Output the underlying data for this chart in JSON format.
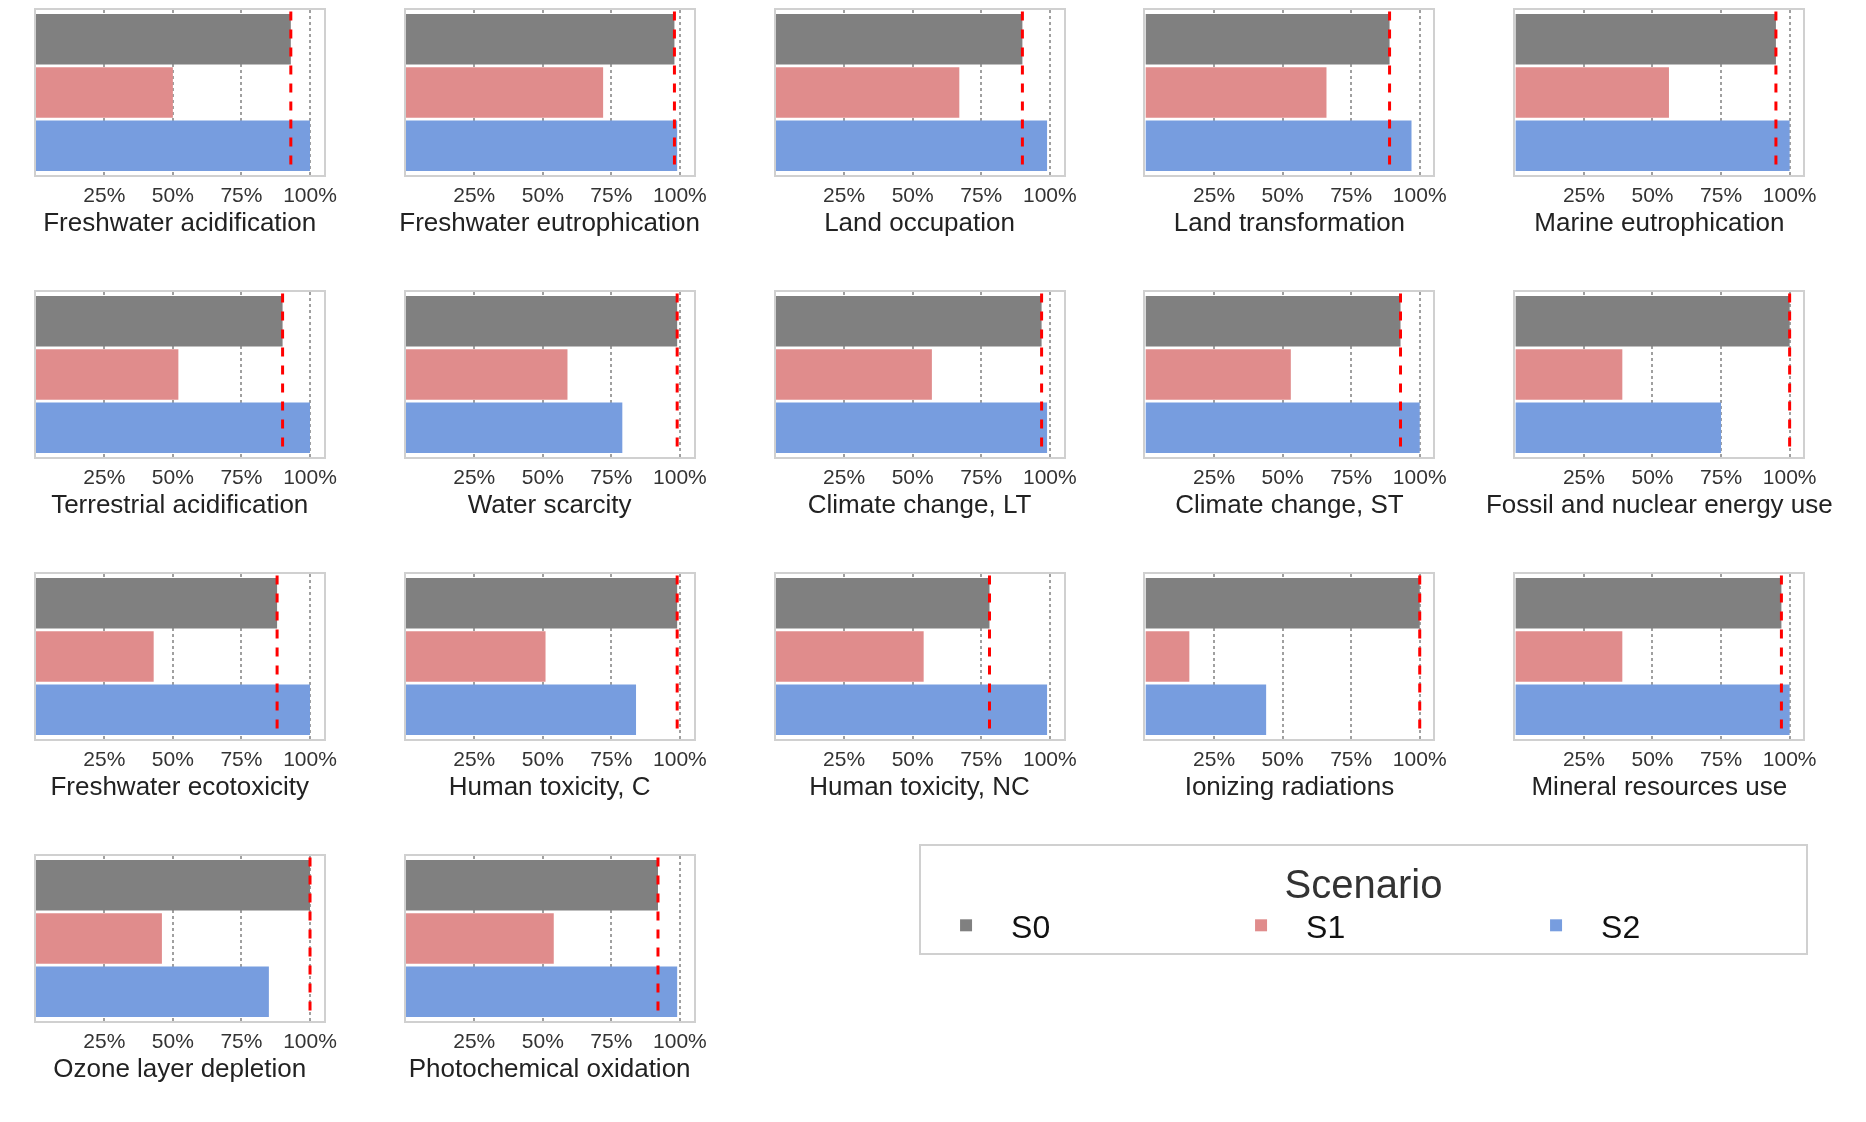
{
  "chart_data": [
    {
      "type": "bar",
      "orientation": "horizontal",
      "xlabel": "Freshwater acidification",
      "categories": [
        null,
        null,
        null
      ],
      "series": [
        {
          "color": "#808080",
          "values": [
            93,
            null,
            null
          ]
        },
        {
          "color": "#e08c8c",
          "values": [
            null,
            50,
            null
          ]
        },
        {
          "color": "#779ddf",
          "values": [
            null,
            null,
            100
          ]
        }
      ],
      "ref_lines": [
        {
          "axis": "x",
          "value": 93,
          "color": "#ff0000",
          "line_style": "dashed"
        }
      ],
      "xlim": [
        0,
        105
      ],
      "xticks": [
        {
          "value": 25,
          "label": "25%"
        },
        {
          "value": 50,
          "label": "50%"
        },
        {
          "value": 75,
          "label": "75%"
        },
        {
          "value": 100,
          "label": "100%"
        }
      ],
      "grid": "x",
      "tick_labels": "x",
      "legend": false
    },
    {
      "type": "bar",
      "orientation": "horizontal",
      "xlabel": "Freshwater eutrophication",
      "categories": [
        null,
        null,
        null
      ],
      "series": [
        {
          "color": "#808080",
          "values": [
            98,
            null,
            null
          ]
        },
        {
          "color": "#e08c8c",
          "values": [
            null,
            72,
            null
          ]
        },
        {
          "color": "#779ddf",
          "values": [
            null,
            null,
            99
          ]
        }
      ],
      "ref_lines": [
        {
          "axis": "x",
          "value": 98,
          "color": "#ff0000",
          "line_style": "dashed"
        }
      ],
      "xlim": [
        0,
        105
      ],
      "xticks": [
        {
          "value": 25,
          "label": "25%"
        },
        {
          "value": 50,
          "label": "50%"
        },
        {
          "value": 75,
          "label": "75%"
        },
        {
          "value": 100,
          "label": "100%"
        }
      ],
      "grid": "x",
      "tick_labels": "x",
      "legend": false
    },
    {
      "type": "bar",
      "orientation": "horizontal",
      "xlabel": "Land occupation",
      "categories": [
        null,
        null,
        null
      ],
      "series": [
        {
          "color": "#808080",
          "values": [
            90,
            null,
            null
          ]
        },
        {
          "color": "#e08c8c",
          "values": [
            null,
            67,
            null
          ]
        },
        {
          "color": "#779ddf",
          "values": [
            null,
            null,
            99
          ]
        }
      ],
      "ref_lines": [
        {
          "axis": "x",
          "value": 90,
          "color": "#ff0000",
          "line_style": "dashed"
        }
      ],
      "xlim": [
        0,
        105
      ],
      "xticks": [
        {
          "value": 25,
          "label": "25%"
        },
        {
          "value": 50,
          "label": "50%"
        },
        {
          "value": 75,
          "label": "75%"
        },
        {
          "value": 100,
          "label": "100%"
        }
      ],
      "grid": "x",
      "tick_labels": "x",
      "legend": false
    },
    {
      "type": "bar",
      "orientation": "horizontal",
      "xlabel": "Land transformation",
      "categories": [
        null,
        null,
        null
      ],
      "series": [
        {
          "color": "#808080",
          "values": [
            89,
            null,
            null
          ]
        },
        {
          "color": "#e08c8c",
          "values": [
            null,
            66,
            null
          ]
        },
        {
          "color": "#779ddf",
          "values": [
            null,
            null,
            97
          ]
        }
      ],
      "ref_lines": [
        {
          "axis": "x",
          "value": 89,
          "color": "#ff0000",
          "line_style": "dashed"
        }
      ],
      "xlim": [
        0,
        105
      ],
      "xticks": [
        {
          "value": 25,
          "label": "25%"
        },
        {
          "value": 50,
          "label": "50%"
        },
        {
          "value": 75,
          "label": "75%"
        },
        {
          "value": 100,
          "label": "100%"
        }
      ],
      "grid": "x",
      "tick_labels": "x",
      "legend": false
    },
    {
      "type": "bar",
      "orientation": "horizontal",
      "xlabel": "Marine eutrophication",
      "categories": [
        null,
        null,
        null
      ],
      "series": [
        {
          "color": "#808080",
          "values": [
            95,
            null,
            null
          ]
        },
        {
          "color": "#e08c8c",
          "values": [
            null,
            56,
            null
          ]
        },
        {
          "color": "#779ddf",
          "values": [
            null,
            null,
            100
          ]
        }
      ],
      "ref_lines": [
        {
          "axis": "x",
          "value": 95,
          "color": "#ff0000",
          "line_style": "dashed"
        }
      ],
      "xlim": [
        0,
        105
      ],
      "xticks": [
        {
          "value": 25,
          "label": "25%"
        },
        {
          "value": 50,
          "label": "50%"
        },
        {
          "value": 75,
          "label": "75%"
        },
        {
          "value": 100,
          "label": "100%"
        }
      ],
      "grid": "x",
      "tick_labels": "x",
      "legend": false
    },
    {
      "type": "bar",
      "orientation": "horizontal",
      "xlabel": "Terrestrial acidification",
      "categories": [
        null,
        null,
        null
      ],
      "series": [
        {
          "color": "#808080",
          "values": [
            90,
            null,
            null
          ]
        },
        {
          "color": "#e08c8c",
          "values": [
            null,
            52,
            null
          ]
        },
        {
          "color": "#779ddf",
          "values": [
            null,
            null,
            100
          ]
        }
      ],
      "ref_lines": [
        {
          "axis": "x",
          "value": 90,
          "color": "#ff0000",
          "line_style": "dashed"
        }
      ],
      "xlim": [
        0,
        105
      ],
      "xticks": [
        {
          "value": 25,
          "label": "25%"
        },
        {
          "value": 50,
          "label": "50%"
        },
        {
          "value": 75,
          "label": "75%"
        },
        {
          "value": 100,
          "label": "100%"
        }
      ],
      "grid": "x",
      "tick_labels": "x",
      "legend": false
    },
    {
      "type": "bar",
      "orientation": "horizontal",
      "xlabel": "Water scarcity",
      "categories": [
        null,
        null,
        null
      ],
      "series": [
        {
          "color": "#808080",
          "values": [
            99,
            null,
            null
          ]
        },
        {
          "color": "#e08c8c",
          "values": [
            null,
            59,
            null
          ]
        },
        {
          "color": "#779ddf",
          "values": [
            null,
            null,
            79
          ]
        }
      ],
      "ref_lines": [
        {
          "axis": "x",
          "value": 99,
          "color": "#ff0000",
          "line_style": "dashed"
        }
      ],
      "xlim": [
        0,
        105
      ],
      "xticks": [
        {
          "value": 25,
          "label": "25%"
        },
        {
          "value": 50,
          "label": "50%"
        },
        {
          "value": 75,
          "label": "75%"
        },
        {
          "value": 100,
          "label": "100%"
        }
      ],
      "grid": "x",
      "tick_labels": "x",
      "legend": false
    },
    {
      "type": "bar",
      "orientation": "horizontal",
      "xlabel": "Climate change, LT",
      "categories": [
        null,
        null,
        null
      ],
      "series": [
        {
          "color": "#808080",
          "values": [
            97,
            null,
            null
          ]
        },
        {
          "color": "#e08c8c",
          "values": [
            null,
            57,
            null
          ]
        },
        {
          "color": "#779ddf",
          "values": [
            null,
            null,
            99
          ]
        }
      ],
      "ref_lines": [
        {
          "axis": "x",
          "value": 97,
          "color": "#ff0000",
          "line_style": "dashed"
        }
      ],
      "xlim": [
        0,
        105
      ],
      "xticks": [
        {
          "value": 25,
          "label": "25%"
        },
        {
          "value": 50,
          "label": "50%"
        },
        {
          "value": 75,
          "label": "75%"
        },
        {
          "value": 100,
          "label": "100%"
        }
      ],
      "grid": "x",
      "tick_labels": "x",
      "legend": false
    },
    {
      "type": "bar",
      "orientation": "horizontal",
      "xlabel": "Climate change, ST",
      "categories": [
        null,
        null,
        null
      ],
      "series": [
        {
          "color": "#808080",
          "values": [
            93,
            null,
            null
          ]
        },
        {
          "color": "#e08c8c",
          "values": [
            null,
            53,
            null
          ]
        },
        {
          "color": "#779ddf",
          "values": [
            null,
            null,
            100
          ]
        }
      ],
      "ref_lines": [
        {
          "axis": "x",
          "value": 93,
          "color": "#ff0000",
          "line_style": "dashed"
        }
      ],
      "xlim": [
        0,
        105
      ],
      "xticks": [
        {
          "value": 25,
          "label": "25%"
        },
        {
          "value": 50,
          "label": "50%"
        },
        {
          "value": 75,
          "label": "75%"
        },
        {
          "value": 100,
          "label": "100%"
        }
      ],
      "grid": "x",
      "tick_labels": "x",
      "legend": false
    },
    {
      "type": "bar",
      "orientation": "horizontal",
      "xlabel": "Fossil and nuclear energy use",
      "categories": [
        null,
        null,
        null
      ],
      "series": [
        {
          "color": "#808080",
          "values": [
            100,
            null,
            null
          ]
        },
        {
          "color": "#e08c8c",
          "values": [
            null,
            39,
            null
          ]
        },
        {
          "color": "#779ddf",
          "values": [
            null,
            null,
            75
          ]
        }
      ],
      "ref_lines": [
        {
          "axis": "x",
          "value": 100,
          "color": "#ff0000",
          "line_style": "dashed"
        }
      ],
      "xlim": [
        0,
        105
      ],
      "xticks": [
        {
          "value": 25,
          "label": "25%"
        },
        {
          "value": 50,
          "label": "50%"
        },
        {
          "value": 75,
          "label": "75%"
        },
        {
          "value": 100,
          "label": "100%"
        }
      ],
      "grid": "x",
      "tick_labels": "x",
      "legend": false
    },
    {
      "type": "bar",
      "orientation": "horizontal",
      "xlabel": "Freshwater ecotoxicity",
      "categories": [
        null,
        null,
        null
      ],
      "series": [
        {
          "color": "#808080",
          "values": [
            88,
            null,
            null
          ]
        },
        {
          "color": "#e08c8c",
          "values": [
            null,
            43,
            null
          ]
        },
        {
          "color": "#779ddf",
          "values": [
            null,
            null,
            100
          ]
        }
      ],
      "ref_lines": [
        {
          "axis": "x",
          "value": 88,
          "color": "#ff0000",
          "line_style": "dashed"
        }
      ],
      "xlim": [
        0,
        105
      ],
      "xticks": [
        {
          "value": 25,
          "label": "25%"
        },
        {
          "value": 50,
          "label": "50%"
        },
        {
          "value": 75,
          "label": "75%"
        },
        {
          "value": 100,
          "label": "100%"
        }
      ],
      "grid": "x",
      "tick_labels": "x",
      "legend": false
    },
    {
      "type": "bar",
      "orientation": "horizontal",
      "xlabel": "Human toxicity, C",
      "categories": [
        null,
        null,
        null
      ],
      "series": [
        {
          "color": "#808080",
          "values": [
            99,
            null,
            null
          ]
        },
        {
          "color": "#e08c8c",
          "values": [
            null,
            51,
            null
          ]
        },
        {
          "color": "#779ddf",
          "values": [
            null,
            null,
            84
          ]
        }
      ],
      "ref_lines": [
        {
          "axis": "x",
          "value": 99,
          "color": "#ff0000",
          "line_style": "dashed"
        }
      ],
      "xlim": [
        0,
        105
      ],
      "xticks": [
        {
          "value": 25,
          "label": "25%"
        },
        {
          "value": 50,
          "label": "50%"
        },
        {
          "value": 75,
          "label": "75%"
        },
        {
          "value": 100,
          "label": "100%"
        }
      ],
      "grid": "x",
      "tick_labels": "x",
      "legend": false
    },
    {
      "type": "bar",
      "orientation": "horizontal",
      "xlabel": "Human toxicity, NC",
      "categories": [
        null,
        null,
        null
      ],
      "series": [
        {
          "color": "#808080",
          "values": [
            78,
            null,
            null
          ]
        },
        {
          "color": "#e08c8c",
          "values": [
            null,
            54,
            null
          ]
        },
        {
          "color": "#779ddf",
          "values": [
            null,
            null,
            99
          ]
        }
      ],
      "ref_lines": [
        {
          "axis": "x",
          "value": 78,
          "color": "#ff0000",
          "line_style": "dashed"
        }
      ],
      "xlim": [
        0,
        105
      ],
      "xticks": [
        {
          "value": 25,
          "label": "25%"
        },
        {
          "value": 50,
          "label": "50%"
        },
        {
          "value": 75,
          "label": "75%"
        },
        {
          "value": 100,
          "label": "100%"
        }
      ],
      "grid": "x",
      "tick_labels": "x",
      "legend": false
    },
    {
      "type": "bar",
      "orientation": "horizontal",
      "xlabel": "Ionizing radiations",
      "categories": [
        null,
        null,
        null
      ],
      "series": [
        {
          "color": "#808080",
          "values": [
            100,
            null,
            null
          ]
        },
        {
          "color": "#e08c8c",
          "values": [
            null,
            16,
            null
          ]
        },
        {
          "color": "#779ddf",
          "values": [
            null,
            null,
            44
          ]
        }
      ],
      "ref_lines": [
        {
          "axis": "x",
          "value": 100,
          "color": "#ff0000",
          "line_style": "dashed"
        }
      ],
      "xlim": [
        0,
        105
      ],
      "xticks": [
        {
          "value": 25,
          "label": "25%"
        },
        {
          "value": 50,
          "label": "50%"
        },
        {
          "value": 75,
          "label": "75%"
        },
        {
          "value": 100,
          "label": "100%"
        }
      ],
      "grid": "x",
      "tick_labels": "x",
      "legend": false
    },
    {
      "type": "bar",
      "orientation": "horizontal",
      "xlabel": "Mineral resources use",
      "categories": [
        null,
        null,
        null
      ],
      "series": [
        {
          "color": "#808080",
          "values": [
            97,
            null,
            null
          ]
        },
        {
          "color": "#e08c8c",
          "values": [
            null,
            39,
            null
          ]
        },
        {
          "color": "#779ddf",
          "values": [
            null,
            null,
            100
          ]
        }
      ],
      "ref_lines": [
        {
          "axis": "x",
          "value": 97,
          "color": "#ff0000",
          "line_style": "dashed"
        }
      ],
      "xlim": [
        0,
        105
      ],
      "xticks": [
        {
          "value": 25,
          "label": "25%"
        },
        {
          "value": 50,
          "label": "50%"
        },
        {
          "value": 75,
          "label": "75%"
        },
        {
          "value": 100,
          "label": "100%"
        }
      ],
      "grid": "x",
      "tick_labels": "x",
      "legend": false
    },
    {
      "type": "bar",
      "orientation": "horizontal",
      "xlabel": "Ozone layer depletion",
      "categories": [
        null,
        null,
        null
      ],
      "series": [
        {
          "color": "#808080",
          "values": [
            100,
            null,
            null
          ]
        },
        {
          "color": "#e08c8c",
          "values": [
            null,
            46,
            null
          ]
        },
        {
          "color": "#779ddf",
          "values": [
            null,
            null,
            85
          ]
        }
      ],
      "ref_lines": [
        {
          "axis": "x",
          "value": 100,
          "color": "#ff0000",
          "line_style": "dashed"
        }
      ],
      "xlim": [
        0,
        105
      ],
      "xticks": [
        {
          "value": 25,
          "label": "25%"
        },
        {
          "value": 50,
          "label": "50%"
        },
        {
          "value": 75,
          "label": "75%"
        },
        {
          "value": 100,
          "label": "100%"
        }
      ],
      "grid": "x",
      "tick_labels": "x",
      "legend": false
    },
    {
      "type": "bar",
      "orientation": "horizontal",
      "xlabel": "Photochemical oxidation",
      "categories": [
        null,
        null,
        null
      ],
      "series": [
        {
          "name": "S0",
          "color": "#808080",
          "values": [
            92,
            null,
            null
          ]
        },
        {
          "name": "S1",
          "color": "#e08c8c",
          "values": [
            null,
            54,
            null
          ]
        },
        {
          "name": "S2",
          "color": "#779ddf",
          "values": [
            null,
            null,
            99
          ]
        }
      ],
      "ref_lines": [
        {
          "axis": "x",
          "value": 92,
          "color": "#ff0000",
          "line_style": "dashed"
        }
      ],
      "xlim": [
        0,
        105
      ],
      "xticks": [
        {
          "value": 25,
          "label": "25%"
        },
        {
          "value": 50,
          "label": "50%"
        },
        {
          "value": 75,
          "label": "75%"
        },
        {
          "value": 100,
          "label": "100%"
        }
      ],
      "grid": "x",
      "tick_labels": "x",
      "legend": "right",
      "legend_title": "Scenario"
    }
  ]
}
